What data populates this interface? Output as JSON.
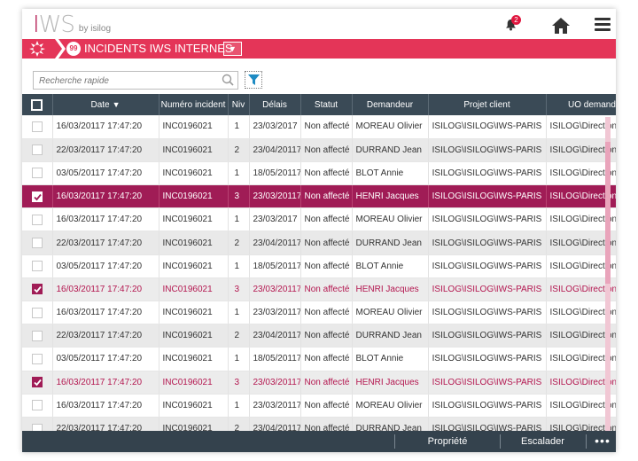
{
  "app": {
    "logo_main": "IWS",
    "logo_by": "by isilog",
    "notification_count": "2",
    "icons": {
      "bell": "bell-icon",
      "home": "home-icon",
      "menu": "hamburger-menu-icon"
    }
  },
  "titlebar": {
    "count": "99",
    "title": "INCIDENTS IWS INTERNES",
    "dropdown": "▼",
    "accent_color": "#e43558"
  },
  "search": {
    "placeholder": "Recherche rapide"
  },
  "table": {
    "columns": [
      "Date",
      "Numéro incident",
      "Niv",
      "Délais",
      "Statut",
      "Demandeur",
      "Projet client",
      "UO demande"
    ],
    "sort_indicator": "▼",
    "rows": [
      {
        "state": "normal",
        "date": "16/03/20117 17:47:20",
        "num": "INC0196021",
        "niv": "1",
        "delais": "23/03/2017",
        "statut": "Non affecté",
        "demandeur": "MOREAU Olivier",
        "projet": "ISILOG\\ISILOG\\IWS-PARIS",
        "uo": "ISILOG\\Direction techn"
      },
      {
        "state": "even",
        "date": "22/03/20117 17:47:20",
        "num": "INC0196021",
        "niv": "2",
        "delais": "23/04/20117",
        "statut": "Non affecté",
        "demandeur": "DURRAND Jean",
        "projet": "ISILOG\\ISILOG\\IWS-PARIS",
        "uo": "ISILOG\\Direction techn"
      },
      {
        "state": "normal",
        "date": "03/05/20117 17:47:20",
        "num": "INC0196021",
        "niv": "1",
        "delais": "18/05/20117",
        "statut": "Non affecté",
        "demandeur": "BLOT Annie",
        "projet": "ISILOG\\ISILOG\\IWS-PARIS",
        "uo": "ISILOG\\Direction techn"
      },
      {
        "state": "strong",
        "date": "16/03/20117 17:47:20",
        "num": "INC0196021",
        "niv": "3",
        "delais": "23/03/20117",
        "statut": "Non affecté",
        "demandeur": "HENRI Jacques",
        "projet": "ISILOG\\ISILOG\\IWS-PARIS",
        "uo": "ISILOG\\Direction techn"
      },
      {
        "state": "normal",
        "date": "16/03/20117 17:47:20",
        "num": "INC0196021",
        "niv": "1",
        "delais": "23/03/2017",
        "statut": "Non affecté",
        "demandeur": "MOREAU Olivier",
        "projet": "ISILOG\\ISILOG\\IWS-PARIS",
        "uo": "ISILOG\\Direction techn"
      },
      {
        "state": "even",
        "date": "22/03/20117 17:47:20",
        "num": "INC0196021",
        "niv": "2",
        "delais": "23/04/20117",
        "statut": "Non affecté",
        "demandeur": "DURRAND Jean",
        "projet": "ISILOG\\ISILOG\\IWS-PARIS",
        "uo": "ISILOG\\Direction techn"
      },
      {
        "state": "normal",
        "date": "03/05/20117 17:47:20",
        "num": "INC0196021",
        "niv": "1",
        "delais": "18/05/20117",
        "statut": "Non affecté",
        "demandeur": "BLOT Annie",
        "projet": "ISILOG\\ISILOG\\IWS-PARIS",
        "uo": "ISILOG\\Direction techn"
      },
      {
        "state": "light",
        "date": "16/03/20117 17:47:20",
        "num": "INC0196021",
        "niv": "3",
        "delais": "23/03/20117",
        "statut": "Non affecté",
        "demandeur": "HENRI Jacques",
        "projet": "ISILOG\\ISILOG\\IWS-PARIS",
        "uo": "ISILOG\\Direction techn"
      },
      {
        "state": "normal",
        "date": "16/03/20117 17:47:20",
        "num": "INC0196021",
        "niv": "1",
        "delais": "23/03/20117",
        "statut": "Non affecté",
        "demandeur": "MOREAU Olivier",
        "projet": "ISILOG\\ISILOG\\IWS-PARIS",
        "uo": "ISILOG\\Direction techn"
      },
      {
        "state": "even",
        "date": "22/03/20117 17:47:20",
        "num": "INC0196021",
        "niv": "2",
        "delais": "23/04/20117",
        "statut": "Non affecté",
        "demandeur": "DURRAND Jean",
        "projet": "ISILOG\\ISILOG\\IWS-PARIS",
        "uo": "ISILOG\\Direction techn"
      },
      {
        "state": "normal",
        "date": "03/05/20117 17:47:20",
        "num": "INC0196021",
        "niv": "1",
        "delais": "18/05/20117",
        "statut": "Non affecté",
        "demandeur": "BLOT Annie",
        "projet": "ISILOG\\ISILOG\\IWS-PARIS",
        "uo": "ISILOG\\Direction techn"
      },
      {
        "state": "light",
        "date": "16/03/20117 17:47:20",
        "num": "INC0196021",
        "niv": "3",
        "delais": "23/03/20117",
        "statut": "Non affecté",
        "demandeur": "HENRI Jacques",
        "projet": "ISILOG\\ISILOG\\IWS-PARIS",
        "uo": "ISILOG\\Direction techn"
      },
      {
        "state": "normal",
        "date": "16/03/20117 17:47:20",
        "num": "INC0196021",
        "niv": "1",
        "delais": "23/03/20117",
        "statut": "Non affecté",
        "demandeur": "MOREAU Olivier",
        "projet": "ISILOG\\ISILOG\\IWS-PARIS",
        "uo": "ISILOG\\Direction techn"
      },
      {
        "state": "even",
        "date": "22/03/20117 17:47:20",
        "num": "INC0196021",
        "niv": "2",
        "delais": "23/04/20117",
        "statut": "Non affecté",
        "demandeur": "DURRAND Jean",
        "projet": "ISILOG\\ISILOG\\IWS-PARIS",
        "uo": "ISILOG\\Direction techn"
      }
    ]
  },
  "actions": {
    "propriete": "Propriété",
    "escalader": "Escalader",
    "more": "•••"
  },
  "colors": {
    "selected_row": "#a01c56",
    "header_bg": "#3a4a56",
    "bottom_bar": "#34424d"
  }
}
